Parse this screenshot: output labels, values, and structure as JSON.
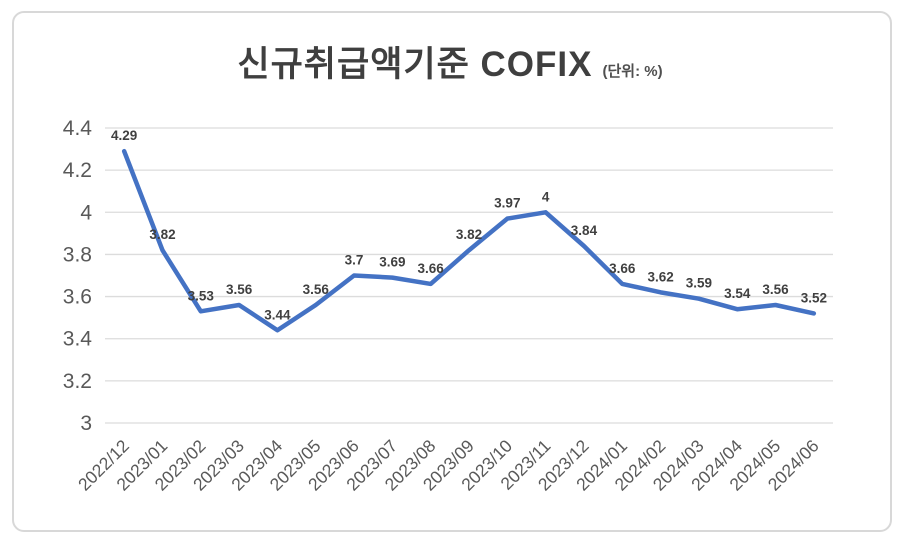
{
  "window": {
    "background_color": "#ffffff",
    "card_border_color": "#d8d8d8"
  },
  "chart_data": {
    "type": "line",
    "title": "신규취급액기준 COFIX",
    "unit_label": "(단위: %)",
    "categories": [
      "2022/12",
      "2023/01",
      "2023/02",
      "2023/03",
      "2023/04",
      "2023/05",
      "2023/06",
      "2023/07",
      "2023/08",
      "2023/09",
      "2023/10",
      "2023/11",
      "2023/12",
      "2024/01",
      "2024/02",
      "2024/03",
      "2024/04",
      "2024/05",
      "2024/06"
    ],
    "series": [
      {
        "name": "신규취급액기준 COFIX",
        "values": [
          4.29,
          3.82,
          3.53,
          3.56,
          3.44,
          3.56,
          3.7,
          3.69,
          3.66,
          3.82,
          3.97,
          4,
          3.84,
          3.66,
          3.62,
          3.59,
          3.54,
          3.56,
          3.52
        ]
      }
    ],
    "data_labels": [
      "4.29",
      "3.82",
      "3.53",
      "3.56",
      "3.44",
      "3.56",
      "3.7",
      "3.69",
      "3.66",
      "3.82",
      "3.97",
      "4",
      "3.84",
      "3.66",
      "3.62",
      "3.59",
      "3.54",
      "3.56",
      "3.52"
    ],
    "y_ticks": [
      "4.4",
      "4.2",
      "4",
      "3.8",
      "3.6",
      "3.4",
      "3.2",
      "3"
    ],
    "ylim": [
      3,
      4.4
    ],
    "grid": true,
    "legend": "none",
    "x_tick_rotation": -45,
    "colors": {
      "line": "#4472c4",
      "data_label": "#404040",
      "axis_label": "#595959",
      "gridline": "#dcdcdc",
      "title": "#3f3f3f"
    }
  }
}
